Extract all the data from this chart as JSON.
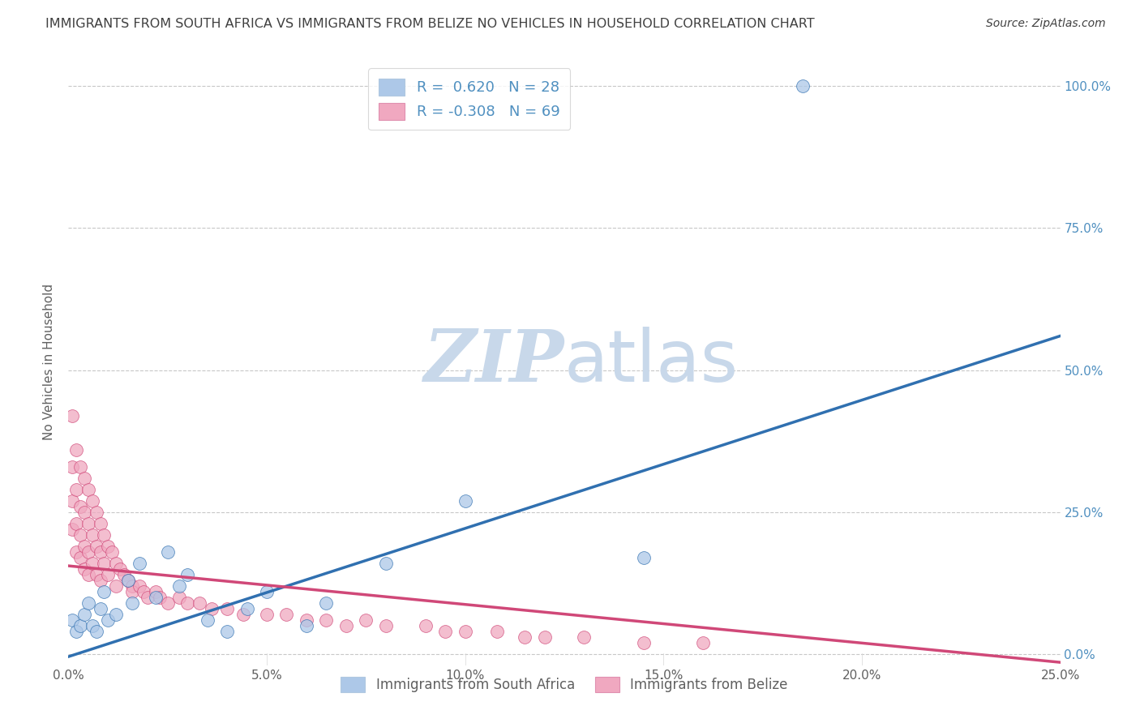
{
  "title": "IMMIGRANTS FROM SOUTH AFRICA VS IMMIGRANTS FROM BELIZE NO VEHICLES IN HOUSEHOLD CORRELATION CHART",
  "source": "Source: ZipAtlas.com",
  "ylabel": "No Vehicles in Household",
  "xlim": [
    0.0,
    0.25
  ],
  "ylim": [
    -0.02,
    1.05
  ],
  "plot_ylim": [
    0.0,
    1.0
  ],
  "xtick_vals": [
    0.0,
    0.05,
    0.1,
    0.15,
    0.2,
    0.25
  ],
  "xtick_labels": [
    "0.0%",
    "5.0%",
    "10.0%",
    "15.0%",
    "20.0%",
    "25.0%"
  ],
  "ytick_vals": [
    0.0,
    0.25,
    0.5,
    0.75,
    1.0
  ],
  "ytick_labels_right": [
    "0.0%",
    "25.0%",
    "50.0%",
    "75.0%",
    "100.0%"
  ],
  "legend_blue_r": "0.620",
  "legend_blue_n": "28",
  "legend_pink_r": "-0.308",
  "legend_pink_n": "69",
  "legend_blue_label": "Immigrants from South Africa",
  "legend_pink_label": "Immigrants from Belize",
  "blue_color": "#adc8e8",
  "blue_line_color": "#3070b0",
  "pink_color": "#f0a8c0",
  "pink_line_color": "#d04878",
  "watermark_zip": "ZIP",
  "watermark_atlas": "atlas",
  "watermark_color": "#c8d8ea",
  "background_color": "#ffffff",
  "grid_color": "#c8c8c8",
  "title_color": "#404040",
  "axis_color": "#606060",
  "right_axis_color": "#5090c0",
  "blue_scatter_x": [
    0.001,
    0.002,
    0.003,
    0.004,
    0.005,
    0.006,
    0.007,
    0.008,
    0.009,
    0.01,
    0.012,
    0.015,
    0.016,
    0.018,
    0.022,
    0.025,
    0.028,
    0.03,
    0.035,
    0.04,
    0.045,
    0.05,
    0.06,
    0.065,
    0.08,
    0.1,
    0.145,
    0.185
  ],
  "blue_scatter_y": [
    0.06,
    0.04,
    0.05,
    0.07,
    0.09,
    0.05,
    0.04,
    0.08,
    0.11,
    0.06,
    0.07,
    0.13,
    0.09,
    0.16,
    0.1,
    0.18,
    0.12,
    0.14,
    0.06,
    0.04,
    0.08,
    0.11,
    0.05,
    0.09,
    0.16,
    0.27,
    0.17,
    1.0
  ],
  "pink_scatter_x": [
    0.001,
    0.001,
    0.001,
    0.001,
    0.002,
    0.002,
    0.002,
    0.002,
    0.003,
    0.003,
    0.003,
    0.003,
    0.004,
    0.004,
    0.004,
    0.004,
    0.005,
    0.005,
    0.005,
    0.005,
    0.006,
    0.006,
    0.006,
    0.007,
    0.007,
    0.007,
    0.008,
    0.008,
    0.008,
    0.009,
    0.009,
    0.01,
    0.01,
    0.011,
    0.012,
    0.012,
    0.013,
    0.014,
    0.015,
    0.016,
    0.016,
    0.018,
    0.019,
    0.02,
    0.022,
    0.023,
    0.025,
    0.028,
    0.03,
    0.033,
    0.036,
    0.04,
    0.044,
    0.05,
    0.055,
    0.06,
    0.065,
    0.07,
    0.075,
    0.08,
    0.09,
    0.095,
    0.1,
    0.108,
    0.115,
    0.12,
    0.13,
    0.145,
    0.16
  ],
  "pink_scatter_y": [
    0.42,
    0.33,
    0.27,
    0.22,
    0.36,
    0.29,
    0.23,
    0.18,
    0.33,
    0.26,
    0.21,
    0.17,
    0.31,
    0.25,
    0.19,
    0.15,
    0.29,
    0.23,
    0.18,
    0.14,
    0.27,
    0.21,
    0.16,
    0.25,
    0.19,
    0.14,
    0.23,
    0.18,
    0.13,
    0.21,
    0.16,
    0.19,
    0.14,
    0.18,
    0.16,
    0.12,
    0.15,
    0.14,
    0.13,
    0.12,
    0.11,
    0.12,
    0.11,
    0.1,
    0.11,
    0.1,
    0.09,
    0.1,
    0.09,
    0.09,
    0.08,
    0.08,
    0.07,
    0.07,
    0.07,
    0.06,
    0.06,
    0.05,
    0.06,
    0.05,
    0.05,
    0.04,
    0.04,
    0.04,
    0.03,
    0.03,
    0.03,
    0.02,
    0.02
  ],
  "blue_line_x0": 0.0,
  "blue_line_y0": -0.005,
  "blue_line_x1": 0.25,
  "blue_line_y1": 0.56,
  "pink_line_x0": 0.0,
  "pink_line_y0": 0.155,
  "pink_line_x1": 0.25,
  "pink_line_y1": -0.015
}
